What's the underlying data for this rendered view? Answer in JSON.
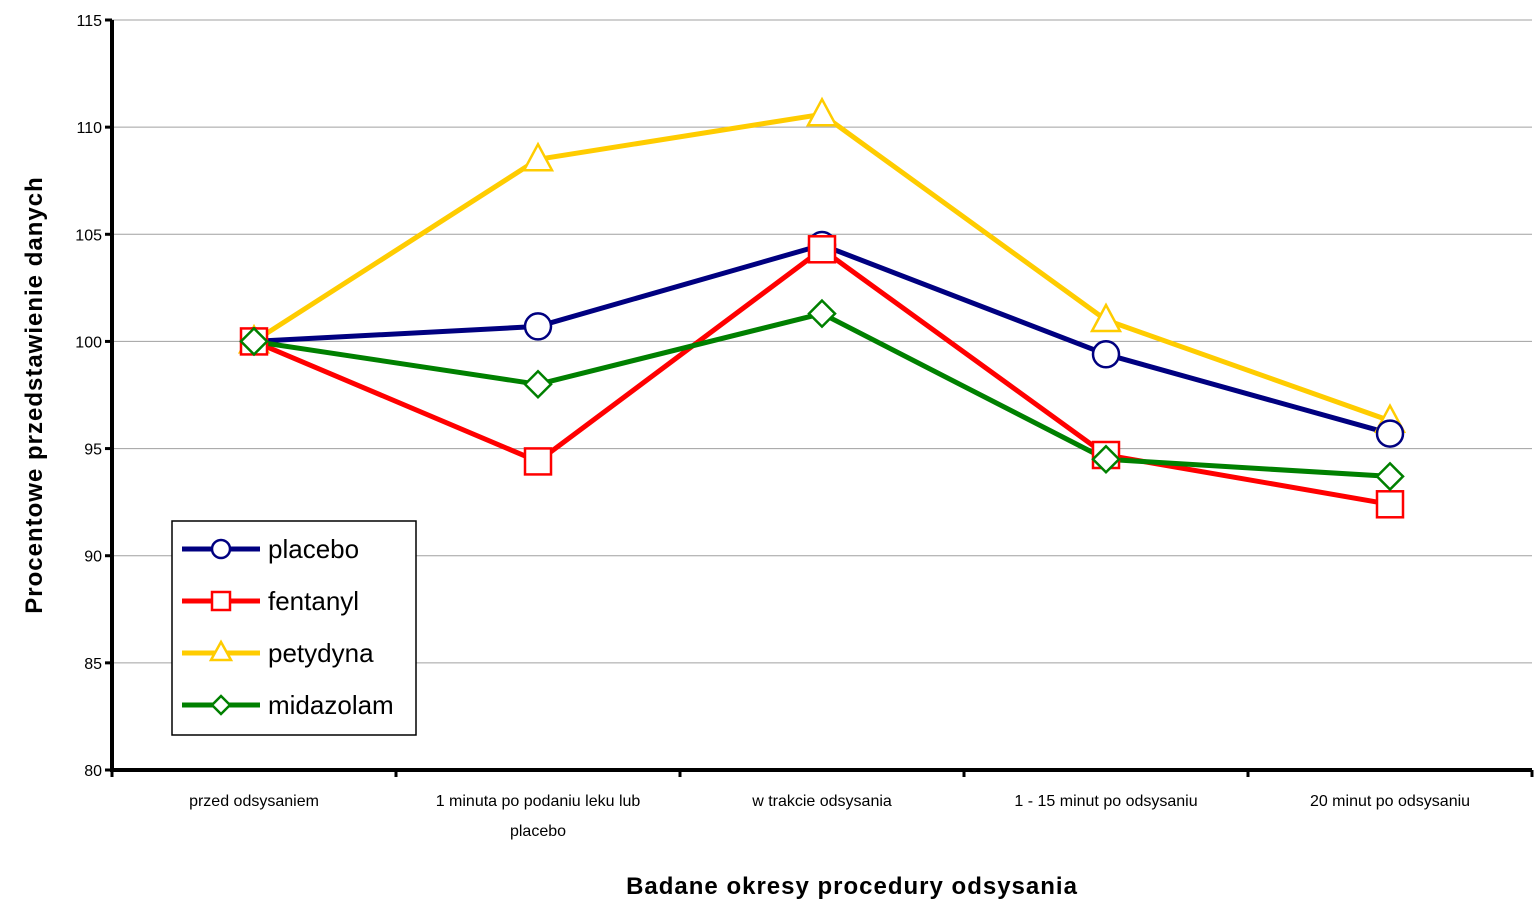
{
  "chart_data": {
    "type": "line",
    "xlabel": "Badane okresy procedury odsysania",
    "ylabel": "Procentowe przedstawienie danych",
    "ylim": [
      80,
      115
    ],
    "yticks": [
      80,
      85,
      90,
      95,
      100,
      105,
      110,
      115
    ],
    "grid": true,
    "legend_position": "bottom-left",
    "categories": [
      [
        "przed odsysaniem"
      ],
      [
        "1 minuta po podaniu leku lub",
        "placebo"
      ],
      [
        "w trakcie odsysania"
      ],
      [
        "1 - 15 minut po odsysaniu"
      ],
      [
        "20 minut po odsysaniu"
      ]
    ],
    "series": [
      {
        "name": "placebo",
        "color": "#000080",
        "marker": "circle",
        "values": [
          100,
          100.7,
          104.5,
          99.4,
          95.7
        ]
      },
      {
        "name": "fentanyl",
        "color": "#ff0000",
        "marker": "square",
        "values": [
          100,
          94.4,
          104.3,
          94.7,
          92.4
        ]
      },
      {
        "name": "petydyna",
        "color": "#ffcc00",
        "marker": "triangle",
        "values": [
          100,
          108.5,
          110.6,
          101.0,
          96.3
        ]
      },
      {
        "name": "midazolam",
        "color": "#008000",
        "marker": "diamond",
        "values": [
          100,
          98.0,
          101.3,
          94.5,
          93.7
        ]
      }
    ]
  }
}
